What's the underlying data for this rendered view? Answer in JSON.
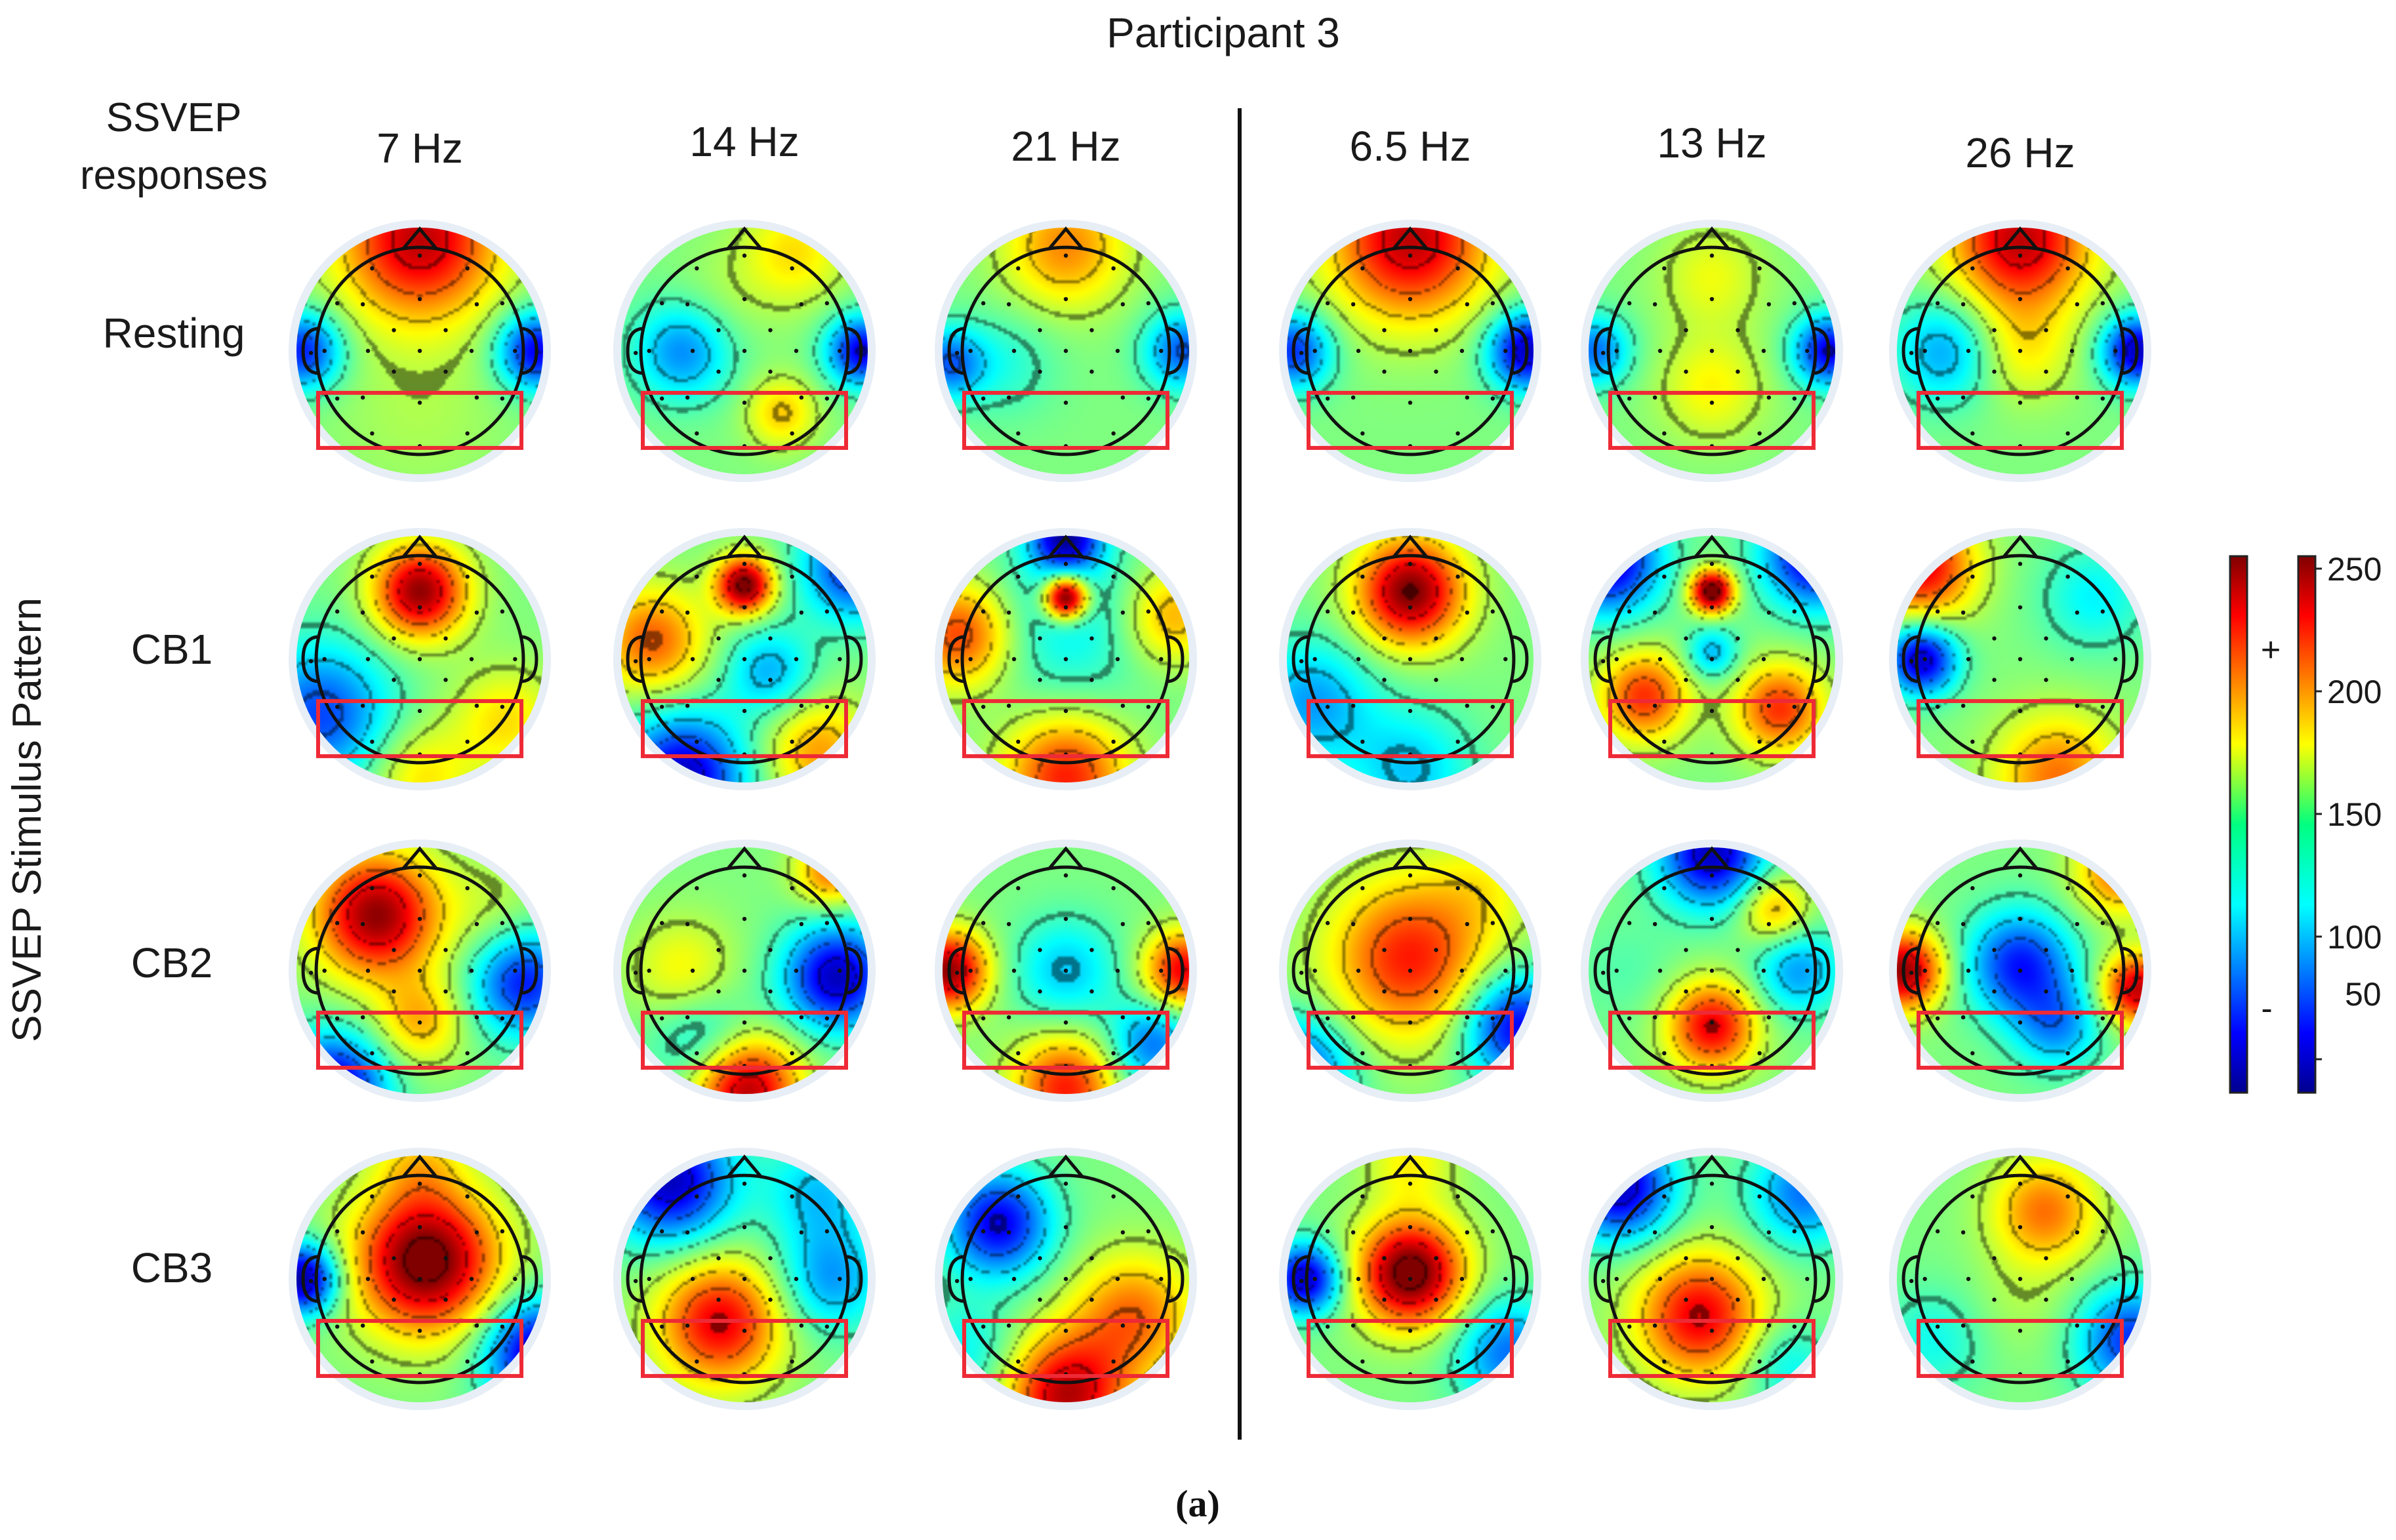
{
  "title": "Participant 3",
  "header_label_lines": [
    "SSVEP",
    "responses"
  ],
  "vertical_axis_label": "SSVEP Stimulus Pattern",
  "frequencies": [
    "7 Hz",
    "14 Hz",
    "21 Hz",
    "6.5 Hz",
    "13 Hz",
    "26 Hz"
  ],
  "conditions": [
    "Resting",
    "CB1",
    "CB2",
    "CB3"
  ],
  "colorbar": {
    "ticks": [
      "250",
      "200",
      "150",
      "100",
      "50"
    ],
    "sign_plus": "+",
    "sign_minus": "-"
  },
  "caption": "(a)",
  "maps": [
    [
      {
        "blobs": [
          [
            0.0,
            -0.9,
            0.45,
            2.0
          ],
          [
            -0.95,
            0.0,
            0.22,
            -1.6
          ],
          [
            0.95,
            0.0,
            0.22,
            -1.8
          ],
          [
            0.0,
            0.5,
            0.5,
            0.2
          ]
        ]
      },
      {
        "blobs": [
          [
            -0.5,
            0.0,
            0.28,
            -1.1
          ],
          [
            0.95,
            0.0,
            0.2,
            -1.8
          ],
          [
            0.3,
            0.5,
            0.2,
            0.8
          ],
          [
            0.4,
            -0.8,
            0.3,
            0.7
          ],
          [
            -0.2,
            -0.4,
            0.3,
            0.2
          ]
        ]
      },
      {
        "blobs": [
          [
            0.0,
            -0.85,
            0.35,
            1.1
          ],
          [
            -0.95,
            0.1,
            0.2,
            -1.2
          ],
          [
            0.95,
            0.0,
            0.22,
            -1.3
          ],
          [
            -0.5,
            0.1,
            0.3,
            -0.4
          ]
        ]
      },
      {
        "blobs": [
          [
            0.0,
            -0.9,
            0.45,
            2.0
          ],
          [
            -0.95,
            0.0,
            0.22,
            -1.5
          ],
          [
            0.95,
            0.0,
            0.22,
            -2.0
          ]
        ]
      },
      {
        "blobs": [
          [
            -0.95,
            0.0,
            0.2,
            -1.2
          ],
          [
            0.95,
            0.0,
            0.2,
            -1.8
          ],
          [
            0.0,
            0.3,
            0.3,
            0.6
          ],
          [
            0.0,
            -0.6,
            0.3,
            0.5
          ]
        ]
      },
      {
        "blobs": [
          [
            0.0,
            -0.9,
            0.4,
            2.0
          ],
          [
            -0.6,
            0.0,
            0.3,
            -1.0
          ],
          [
            0.95,
            0.0,
            0.2,
            -2.0
          ],
          [
            0.0,
            0.0,
            0.3,
            0.6
          ]
        ]
      }
    ],
    [
      {
        "blobs": [
          [
            0.0,
            -0.55,
            0.26,
            2.2
          ],
          [
            -0.8,
            0.45,
            0.4,
            -1.4
          ],
          [
            0.7,
            0.5,
            0.3,
            0.7
          ],
          [
            0.0,
            0.95,
            0.3,
            0.7
          ]
        ]
      },
      {
        "blobs": [
          [
            0.0,
            -0.6,
            0.16,
            2.4
          ],
          [
            -0.75,
            -0.15,
            0.3,
            1.3
          ],
          [
            -0.5,
            0.95,
            0.35,
            -2.0
          ],
          [
            0.2,
            0.1,
            0.25,
            -0.9
          ],
          [
            0.9,
            -0.75,
            0.3,
            -1.6
          ],
          [
            0.6,
            0.75,
            0.3,
            1.0
          ]
        ]
      },
      {
        "blobs": [
          [
            0.0,
            -0.5,
            0.12,
            2.8
          ],
          [
            0.0,
            -0.3,
            0.5,
            -0.6
          ],
          [
            -0.85,
            -0.2,
            0.3,
            1.5
          ],
          [
            0.0,
            0.95,
            0.35,
            1.6
          ],
          [
            0.85,
            -0.35,
            0.28,
            1.0
          ],
          [
            0.0,
            -1.0,
            0.2,
            -2.0
          ]
        ]
      },
      {
        "blobs": [
          [
            0.0,
            -0.55,
            0.3,
            2.3
          ],
          [
            -0.8,
            0.35,
            0.35,
            -1.0
          ],
          [
            0.0,
            0.9,
            0.35,
            -0.8
          ]
        ]
      },
      {
        "blobs": [
          [
            0.0,
            -0.55,
            0.12,
            2.6
          ],
          [
            0.0,
            -0.05,
            0.15,
            -0.9
          ],
          [
            -0.55,
            0.3,
            0.25,
            1.5
          ],
          [
            0.55,
            0.4,
            0.25,
            1.5
          ],
          [
            -0.85,
            -0.8,
            0.3,
            -2.0
          ],
          [
            0.85,
            -0.85,
            0.3,
            -2.0
          ]
        ]
      },
      {
        "blobs": [
          [
            -0.8,
            0.0,
            0.2,
            -2.0
          ],
          [
            -0.8,
            -0.75,
            0.3,
            1.8
          ],
          [
            0.3,
            0.95,
            0.35,
            1.2
          ],
          [
            0.6,
            -0.5,
            0.3,
            -0.6
          ]
        ]
      }
    ],
    [
      {
        "blobs": [
          [
            -0.35,
            -0.45,
            0.35,
            2.2
          ],
          [
            0.0,
            0.4,
            0.25,
            0.9
          ],
          [
            0.85,
            0.1,
            0.3,
            -1.6
          ],
          [
            -0.7,
            0.95,
            0.3,
            -2.0
          ],
          [
            0.6,
            -0.5,
            0.3,
            0.3
          ]
        ]
      },
      {
        "blobs": [
          [
            0.0,
            0.95,
            0.3,
            2.2
          ],
          [
            0.75,
            0.05,
            0.3,
            -2.0
          ],
          [
            -0.5,
            0.0,
            0.3,
            0.6
          ],
          [
            0.7,
            -0.8,
            0.2,
            1.2
          ],
          [
            -0.3,
            0.6,
            0.3,
            -0.8
          ]
        ]
      },
      {
        "blobs": [
          [
            -0.95,
            0.0,
            0.22,
            2.2
          ],
          [
            0.95,
            0.0,
            0.22,
            1.8
          ],
          [
            0.0,
            0.95,
            0.3,
            1.6
          ],
          [
            0.0,
            0.0,
            0.3,
            -0.8
          ],
          [
            0.7,
            0.6,
            0.25,
            -1.2
          ]
        ]
      },
      {
        "blobs": [
          [
            0.0,
            -0.1,
            0.45,
            1.6
          ],
          [
            0.85,
            0.45,
            0.3,
            -1.8
          ],
          [
            -0.9,
            0.8,
            0.3,
            -1.4
          ],
          [
            0.6,
            -0.7,
            0.3,
            0.4
          ]
        ]
      },
      {
        "blobs": [
          [
            0.0,
            -0.95,
            0.3,
            -2.0
          ],
          [
            0.0,
            0.45,
            0.25,
            1.8
          ],
          [
            -0.7,
            0.0,
            0.3,
            -0.2
          ],
          [
            0.7,
            0.0,
            0.25,
            -1.0
          ],
          [
            0.5,
            -0.5,
            0.2,
            1.0
          ]
        ]
      },
      {
        "blobs": [
          [
            -0.95,
            0.0,
            0.22,
            2.2
          ],
          [
            0.95,
            0.15,
            0.2,
            2.0
          ],
          [
            0.0,
            -0.05,
            0.3,
            -1.6
          ],
          [
            0.3,
            0.45,
            0.25,
            -1.0
          ],
          [
            0.8,
            -0.8,
            0.25,
            1.2
          ]
        ]
      }
    ],
    [
      {
        "blobs": [
          [
            0.05,
            -0.15,
            0.4,
            2.5
          ],
          [
            -0.95,
            0.0,
            0.2,
            -2.2
          ],
          [
            0.95,
            0.6,
            0.3,
            -2.0
          ],
          [
            0.0,
            -0.95,
            0.25,
            0.6
          ]
        ]
      },
      {
        "blobs": [
          [
            -0.2,
            0.35,
            0.35,
            1.8
          ],
          [
            -0.6,
            -0.8,
            0.35,
            -2.0
          ],
          [
            0.7,
            0.0,
            0.3,
            -1.0
          ],
          [
            0.6,
            -0.7,
            0.3,
            -0.8
          ]
        ]
      },
      {
        "blobs": [
          [
            -0.55,
            -0.45,
            0.3,
            -1.8
          ],
          [
            0.0,
            0.95,
            0.35,
            2.0
          ],
          [
            0.55,
            0.3,
            0.35,
            1.2
          ],
          [
            -0.8,
            0.6,
            0.3,
            -0.6
          ]
        ]
      },
      {
        "blobs": [
          [
            0.0,
            -0.05,
            0.3,
            2.5
          ],
          [
            -0.85,
            0.0,
            0.2,
            -2.0
          ],
          [
            0.8,
            0.6,
            0.3,
            -1.2
          ],
          [
            0.0,
            -0.95,
            0.25,
            0.6
          ]
        ]
      },
      {
        "blobs": [
          [
            -0.1,
            0.3,
            0.35,
            1.8
          ],
          [
            -0.75,
            -0.75,
            0.3,
            -2.0
          ],
          [
            0.75,
            -0.7,
            0.3,
            -1.2
          ],
          [
            0.6,
            0.7,
            0.25,
            -0.6
          ]
        ]
      },
      {
        "blobs": [
          [
            0.2,
            -0.55,
            0.3,
            1.2
          ],
          [
            0.9,
            0.5,
            0.3,
            -1.5
          ],
          [
            -0.7,
            0.5,
            0.3,
            -0.5
          ],
          [
            0.0,
            0.2,
            0.3,
            0.2
          ]
        ]
      }
    ]
  ]
}
